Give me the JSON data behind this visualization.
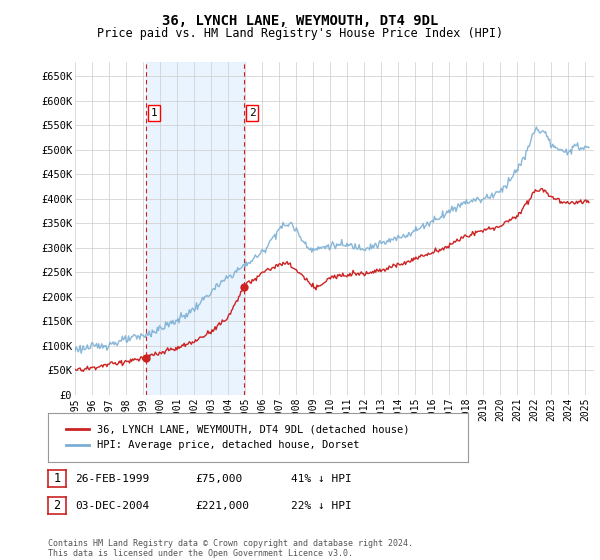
{
  "title": "36, LYNCH LANE, WEYMOUTH, DT4 9DL",
  "subtitle": "Price paid vs. HM Land Registry's House Price Index (HPI)",
  "ylabel_ticks": [
    "£0",
    "£50K",
    "£100K",
    "£150K",
    "£200K",
    "£250K",
    "£300K",
    "£350K",
    "£400K",
    "£450K",
    "£500K",
    "£550K",
    "£600K",
    "£650K"
  ],
  "ylim": [
    0,
    680000
  ],
  "xlim_start": 1995.0,
  "xlim_end": 2025.5,
  "hpi_color": "#7bafd4",
  "price_color": "#cc2222",
  "marker1_x": 1999.15,
  "marker1_y": 75000,
  "marker2_x": 2004.92,
  "marker2_y": 221000,
  "vline1_x": 1999.15,
  "vline2_x": 2004.92,
  "legend_line1": "36, LYNCH LANE, WEYMOUTH, DT4 9DL (detached house)",
  "legend_line2": "HPI: Average price, detached house, Dorset",
  "table_row1_date": "26-FEB-1999",
  "table_row1_price": "£75,000",
  "table_row1_hpi": "41% ↓ HPI",
  "table_row2_date": "03-DEC-2004",
  "table_row2_price": "£221,000",
  "table_row2_hpi": "22% ↓ HPI",
  "footnote": "Contains HM Land Registry data © Crown copyright and database right 2024.\nThis data is licensed under the Open Government Licence v3.0.",
  "background_color": "#ffffff",
  "grid_color": "#cccccc",
  "shade_color": "#ddeeff"
}
